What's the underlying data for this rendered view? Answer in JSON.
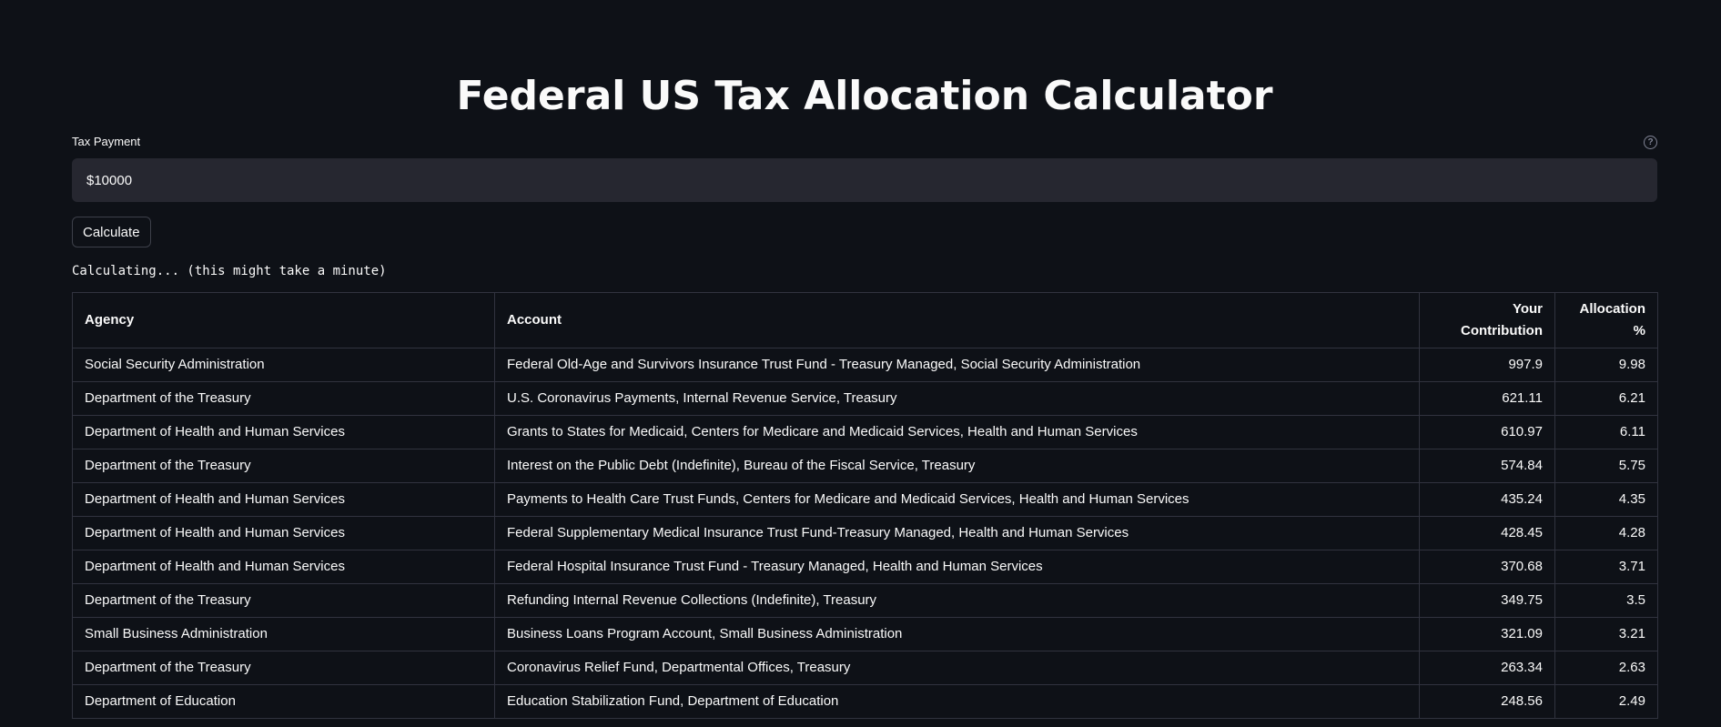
{
  "header": {
    "title": "Federal US Tax Allocation Calculator"
  },
  "form": {
    "label": "Tax Payment",
    "help_icon": "question-circle-icon",
    "value": "$10000",
    "button_label": "Calculate"
  },
  "status": {
    "text": "Calculating... (this might take a minute)"
  },
  "table": {
    "headers": {
      "agency": "Agency",
      "account": "Account",
      "contribution": "Your Contribution",
      "allocation": "Allocation %"
    },
    "rows": [
      {
        "agency": "Social Security Administration",
        "account": "Federal Old-Age and Survivors Insurance Trust Fund - Treasury Managed, Social Security Administration",
        "contribution": "997.9",
        "allocation": "9.98"
      },
      {
        "agency": "Department of the Treasury",
        "account": "U.S. Coronavirus Payments, Internal Revenue Service, Treasury",
        "contribution": "621.11",
        "allocation": "6.21"
      },
      {
        "agency": "Department of Health and Human Services",
        "account": "Grants to States for Medicaid, Centers for Medicare and Medicaid Services, Health and Human Services",
        "contribution": "610.97",
        "allocation": "6.11"
      },
      {
        "agency": "Department of the Treasury",
        "account": "Interest on the Public Debt (Indefinite), Bureau of the Fiscal Service, Treasury",
        "contribution": "574.84",
        "allocation": "5.75"
      },
      {
        "agency": "Department of Health and Human Services",
        "account": "Payments to Health Care Trust Funds, Centers for Medicare and Medicaid Services, Health and Human Services",
        "contribution": "435.24",
        "allocation": "4.35"
      },
      {
        "agency": "Department of Health and Human Services",
        "account": "Federal Supplementary Medical Insurance Trust Fund-Treasury Managed, Health and Human Services",
        "contribution": "428.45",
        "allocation": "4.28"
      },
      {
        "agency": "Department of Health and Human Services",
        "account": "Federal Hospital Insurance Trust Fund - Treasury Managed, Health and Human Services",
        "contribution": "370.68",
        "allocation": "3.71"
      },
      {
        "agency": "Department of the Treasury",
        "account": "Refunding Internal Revenue Collections (Indefinite), Treasury",
        "contribution": "349.75",
        "allocation": "3.5"
      },
      {
        "agency": "Small Business Administration",
        "account": "Business Loans Program Account, Small Business Administration",
        "contribution": "321.09",
        "allocation": "3.21"
      },
      {
        "agency": "Department of the Treasury",
        "account": "Coronavirus Relief Fund, Departmental Offices, Treasury",
        "contribution": "263.34",
        "allocation": "2.63"
      },
      {
        "agency": "Department of Education",
        "account": "Education Stabilization Fund, Department of Education",
        "contribution": "248.56",
        "allocation": "2.49"
      }
    ]
  }
}
